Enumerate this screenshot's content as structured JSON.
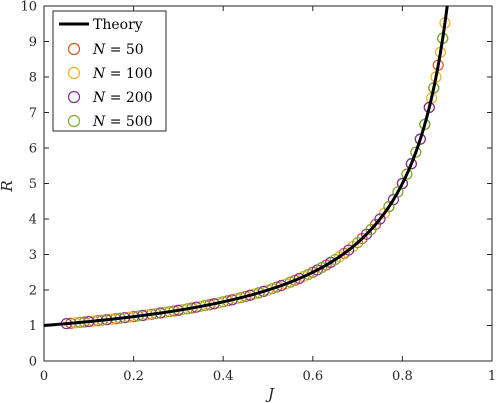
{
  "chart_data": {
    "type": "scatter",
    "xlabel": "J",
    "ylabel": "R",
    "xlim": [
      0,
      1
    ],
    "ylim": [
      0,
      10
    ],
    "xticks": [
      "0",
      "0.2",
      "0.4",
      "0.6",
      "0.8",
      "1"
    ],
    "yticks": [
      "0",
      "1",
      "2",
      "3",
      "4",
      "5",
      "6",
      "7",
      "8",
      "9",
      "10"
    ],
    "grid": false,
    "legend_position": "top-left",
    "theory": {
      "name": "Theory",
      "color": "#000000",
      "formula": "R = 1/(1-J)",
      "x_range": [
        0,
        0.9
      ]
    },
    "series": [
      {
        "name": "N = 50",
        "label_var": "N",
        "label_rest": " = 50",
        "color": "#D95319",
        "x": [
          0.06,
          0.09,
          0.12,
          0.16,
          0.2,
          0.24,
          0.29,
          0.33,
          0.37,
          0.41,
          0.45,
          0.48,
          0.52,
          0.56,
          0.6,
          0.63,
          0.67,
          0.71,
          0.74,
          0.77,
          0.8,
          0.82,
          0.84,
          0.86,
          0.87,
          0.88,
          0.89
        ]
      },
      {
        "name": "N = 100",
        "label_var": "N",
        "label_rest": " = 100",
        "color": "#EDB120",
        "x": [
          0.07,
          0.11,
          0.15,
          0.19,
          0.23,
          0.27,
          0.31,
          0.35,
          0.39,
          0.43,
          0.47,
          0.5,
          0.54,
          0.58,
          0.62,
          0.66,
          0.69,
          0.73,
          0.76,
          0.79,
          0.81,
          0.83,
          0.85,
          0.865,
          0.875,
          0.885,
          0.895
        ]
      },
      {
        "name": "N = 200",
        "label_var": "N",
        "label_rest": " = 200",
        "color": "#7E2F8E",
        "x": [
          0.05,
          0.1,
          0.14,
          0.18,
          0.22,
          0.26,
          0.3,
          0.34,
          0.38,
          0.42,
          0.46,
          0.49,
          0.53,
          0.57,
          0.61,
          0.64,
          0.68,
          0.72,
          0.75,
          0.78,
          0.8,
          0.82,
          0.84,
          0.85,
          0.86
        ]
      },
      {
        "name": "N = 500",
        "label_var": "N",
        "label_rest": " = 500",
        "color": "#77AC30",
        "x": [
          0.08,
          0.13,
          0.17,
          0.21,
          0.25,
          0.28,
          0.32,
          0.36,
          0.4,
          0.44,
          0.48,
          0.51,
          0.55,
          0.59,
          0.62,
          0.65,
          0.7,
          0.73,
          0.77,
          0.79,
          0.81,
          0.83,
          0.85,
          0.87,
          0.89
        ]
      }
    ]
  }
}
